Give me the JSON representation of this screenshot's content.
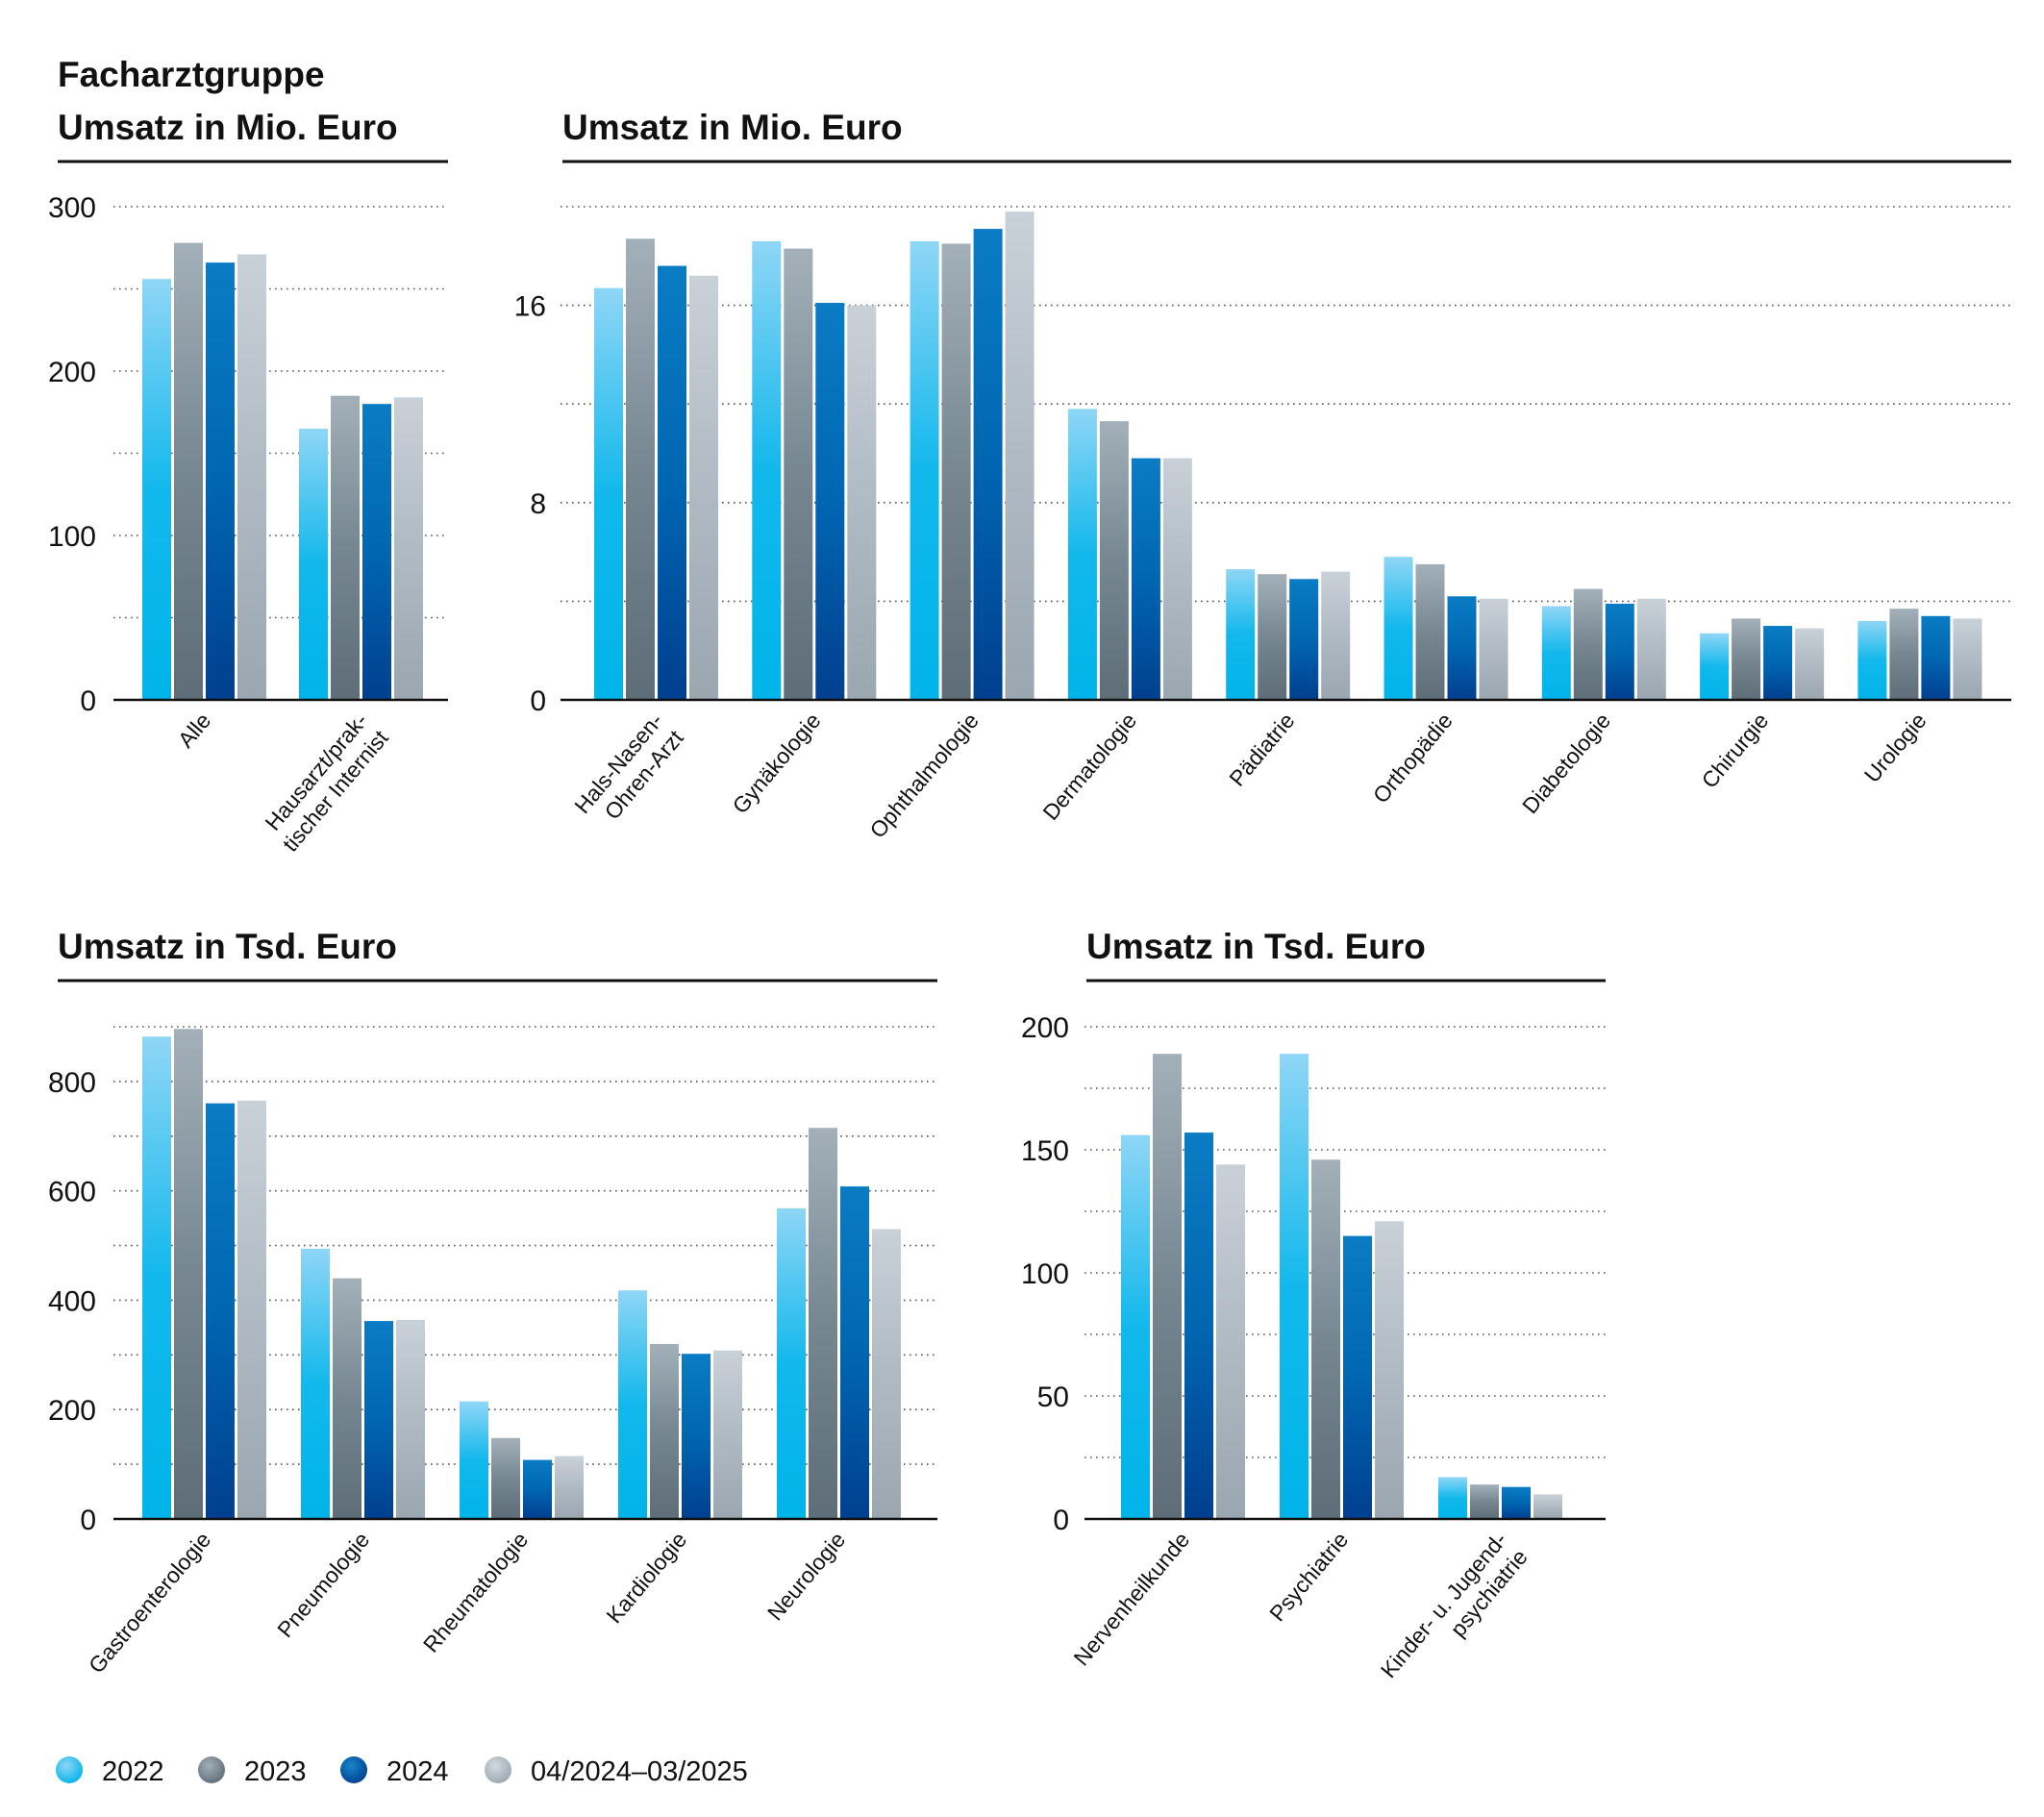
{
  "legend": [
    {
      "label": "2022",
      "color": "#12b8ec"
    },
    {
      "label": "2023",
      "color": "#6f7f8b"
    },
    {
      "label": "2024",
      "color": "#0063b0"
    },
    {
      "label": "04/2024–03/2025",
      "color": "#a9b4be"
    }
  ],
  "chart_data": [
    {
      "type": "bar",
      "title": "Facharztgruppe",
      "subtitle": "Umsatz in Mio. Euro",
      "ylim": [
        0,
        300
      ],
      "yticks": [
        "0",
        "100",
        "200",
        "300"
      ],
      "grid": true,
      "categories": [
        [
          "Alle"
        ],
        [
          "Hausarzt/prak-",
          "tischer Internist"
        ]
      ],
      "series": [
        {
          "name": "2022",
          "values": [
            256,
            165
          ]
        },
        {
          "name": "2023",
          "values": [
            278,
            185
          ]
        },
        {
          "name": "2024",
          "values": [
            266,
            180
          ]
        },
        {
          "name": "04/2024–03/2025",
          "values": [
            271,
            184
          ]
        }
      ]
    },
    {
      "type": "bar",
      "title": "Umsatz in Mio. Euro",
      "ylim": [
        0,
        20
      ],
      "yticks": [
        "0",
        "8",
        "16"
      ],
      "grid": true,
      "categories": [
        [
          "Hals-Nasen-",
          "Ohren-Arzt"
        ],
        [
          "Gynäkologie"
        ],
        [
          "Ophthalmologie"
        ],
        [
          "Dermatologie"
        ],
        [
          "Pädiatrie"
        ],
        [
          "Orthopädie"
        ],
        [
          "Diabetologie"
        ],
        [
          "Chirurgie"
        ],
        [
          "Urologie"
        ]
      ],
      "series": [
        {
          "name": "2022",
          "values": [
            16.7,
            18.6,
            18.6,
            11.8,
            5.3,
            5.8,
            3.8,
            2.7,
            3.2
          ]
        },
        {
          "name": "2023",
          "values": [
            18.7,
            18.3,
            18.5,
            11.3,
            5.1,
            5.5,
            4.5,
            3.3,
            3.7
          ]
        },
        {
          "name": "2024",
          "values": [
            17.6,
            16.1,
            19.1,
            9.8,
            4.9,
            4.2,
            3.9,
            3.0,
            3.4
          ]
        },
        {
          "name": "04/2024–03/2025",
          "values": [
            17.2,
            16.0,
            19.8,
            9.8,
            5.2,
            4.1,
            4.1,
            2.9,
            3.3
          ]
        }
      ]
    },
    {
      "type": "bar",
      "title": "Umsatz in Tsd. Euro",
      "ylim": [
        0,
        900
      ],
      "yticks": [
        "0",
        "200",
        "400",
        "600",
        "800"
      ],
      "grid": true,
      "categories": [
        [
          "Gastroenterologie"
        ],
        [
          "Pneumologie"
        ],
        [
          "Rheumatologie"
        ],
        [
          "Kardiologie"
        ],
        [
          "Neurologie"
        ]
      ],
      "series": [
        {
          "name": "2022",
          "values": [
            882,
            494,
            215,
            418,
            568
          ]
        },
        {
          "name": "2023",
          "values": [
            896,
            440,
            148,
            320,
            715
          ]
        },
        {
          "name": "2024",
          "values": [
            760,
            362,
            108,
            302,
            608
          ]
        },
        {
          "name": "04/2024–03/2025",
          "values": [
            765,
            364,
            115,
            308,
            530
          ]
        }
      ]
    },
    {
      "type": "bar",
      "title": "Umsatz in Tsd. Euro",
      "ylim": [
        0,
        200
      ],
      "yticks": [
        "0",
        "50",
        "100",
        "150",
        "200"
      ],
      "grid": true,
      "categories": [
        [
          "Nervenheilkunde"
        ],
        [
          "Psychiatrie"
        ],
        [
          "Kinder- u. Jugend-",
          "psychiatrie"
        ]
      ],
      "series": [
        {
          "name": "2022",
          "values": [
            156,
            189,
            17
          ]
        },
        {
          "name": "2023",
          "values": [
            189,
            146,
            14
          ]
        },
        {
          "name": "2024",
          "values": [
            157,
            115,
            13
          ]
        },
        {
          "name": "04/2024–03/2025",
          "values": [
            144,
            121,
            10
          ]
        }
      ]
    }
  ]
}
